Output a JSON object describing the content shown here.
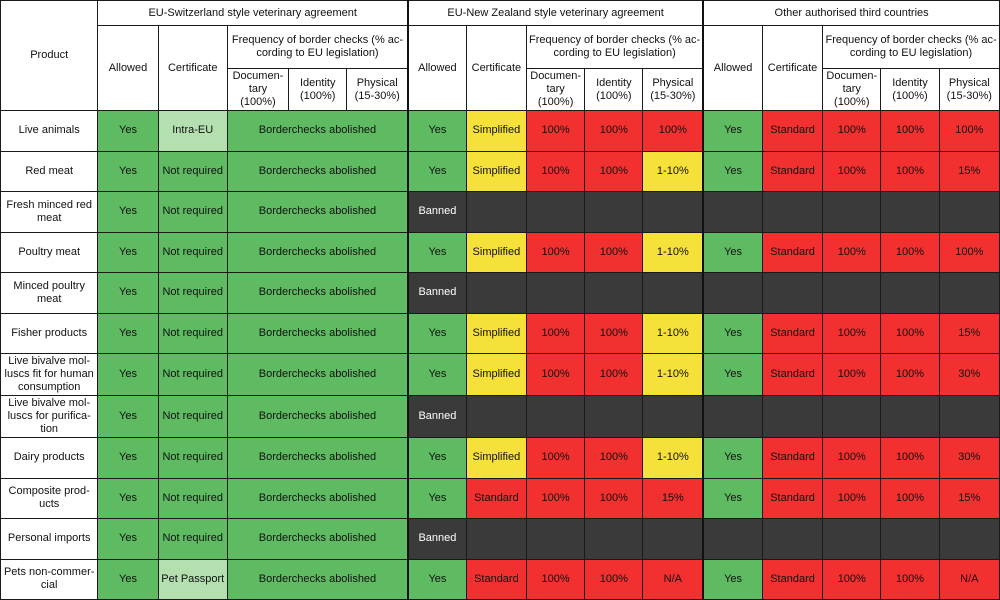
{
  "header": {
    "product": "Product",
    "groups": [
      "EU-Switzerland style veterinary agreement",
      "EU-New Zealand style veterinary agreement",
      "Other authorised third countries"
    ],
    "allowed": "Allowed",
    "certificate": "Certificate",
    "frequency": "Frequency of border checks (% ac-cording to EU legislation)",
    "documentary": "Documen-tary (100%)",
    "identity": "Identity (100%)",
    "physical": "Physical (15-30%)"
  },
  "colors": {
    "green": "#5fbb62",
    "light_green": "#b4e0b0",
    "yellow": "#f6e03a",
    "red": "#f23030",
    "dark": "#3a3a3a"
  },
  "rows": [
    {
      "product": "Live animals",
      "ch_allowed": "Yes",
      "ch_cert": "Intra-EU",
      "ch_checks": "Borderchecks abolished",
      "nz_allowed": "Yes",
      "nz_cert": "Simplified",
      "nz_doc": "100%",
      "nz_id": "100%",
      "nz_phys": "100%",
      "ot_allowed": "Yes",
      "ot_cert": "Standard",
      "ot_doc": "100%",
      "ot_id": "100%",
      "ot_phys": "100%"
    },
    {
      "product": "Red meat",
      "ch_allowed": "Yes",
      "ch_cert": "Not required",
      "ch_checks": "Borderchecks abolished",
      "nz_allowed": "Yes",
      "nz_cert": "Simplified",
      "nz_doc": "100%",
      "nz_id": "100%",
      "nz_phys": "1-10%",
      "ot_allowed": "Yes",
      "ot_cert": "Standard",
      "ot_doc": "100%",
      "ot_id": "100%",
      "ot_phys": "15%"
    },
    {
      "product": "Fresh minced red meat",
      "ch_allowed": "Yes",
      "ch_cert": "Not required",
      "ch_checks": "Borderchecks abolished",
      "nz_allowed": "Banned"
    },
    {
      "product": "Poultry meat",
      "ch_allowed": "Yes",
      "ch_cert": "Not required",
      "ch_checks": "Borderchecks abolished",
      "nz_allowed": "Yes",
      "nz_cert": "Simplified",
      "nz_doc": "100%",
      "nz_id": "100%",
      "nz_phys": "1-10%",
      "ot_allowed": "Yes",
      "ot_cert": "Standard",
      "ot_doc": "100%",
      "ot_id": "100%",
      "ot_phys": "100%"
    },
    {
      "product": "Minced poultry meat",
      "ch_allowed": "Yes",
      "ch_cert": "Not required",
      "ch_checks": "Borderchecks abolished",
      "nz_allowed": "Banned"
    },
    {
      "product": "Fisher products",
      "ch_allowed": "Yes",
      "ch_cert": "Not required",
      "ch_checks": "Borderchecks abolished",
      "nz_allowed": "Yes",
      "nz_cert": "Simplified",
      "nz_doc": "100%",
      "nz_id": "100%",
      "nz_phys": "1-10%",
      "ot_allowed": "Yes",
      "ot_cert": "Standard",
      "ot_doc": "100%",
      "ot_id": "100%",
      "ot_phys": "15%"
    },
    {
      "product": "Live bivalve mol-luscs fit for human consumption",
      "ch_allowed": "Yes",
      "ch_cert": "Not required",
      "ch_checks": "Borderchecks abolished",
      "nz_allowed": "Yes",
      "nz_cert": "Simplified",
      "nz_doc": "100%",
      "nz_id": "100%",
      "nz_phys": "1-10%",
      "ot_allowed": "Yes",
      "ot_cert": "Standard",
      "ot_doc": "100%",
      "ot_id": "100%",
      "ot_phys": "30%"
    },
    {
      "product": "Live bivalve mol-luscs for purifica-tion",
      "ch_allowed": "Yes",
      "ch_cert": "Not required",
      "ch_checks": "Borderchecks abolished",
      "nz_allowed": "Banned"
    },
    {
      "product": "Dairy products",
      "ch_allowed": "Yes",
      "ch_cert": "Not required",
      "ch_checks": "Borderchecks abolished",
      "nz_allowed": "Yes",
      "nz_cert": "Simplified",
      "nz_doc": "100%",
      "nz_id": "100%",
      "nz_phys": "1-10%",
      "ot_allowed": "Yes",
      "ot_cert": "Standard",
      "ot_doc": "100%",
      "ot_id": "100%",
      "ot_phys": "30%"
    },
    {
      "product": "Composite prod-ucts",
      "ch_allowed": "Yes",
      "ch_cert": "Not required",
      "ch_checks": "Borderchecks abolished",
      "nz_allowed": "Yes",
      "nz_cert": "Standard",
      "nz_doc": "100%",
      "nz_id": "100%",
      "nz_phys": "15%",
      "ot_allowed": "Yes",
      "ot_cert": "Standard",
      "ot_doc": "100%",
      "ot_id": "100%",
      "ot_phys": "15%"
    },
    {
      "product": "Personal imports",
      "ch_allowed": "Yes",
      "ch_cert": "Not required",
      "ch_checks": "Borderchecks abolished",
      "nz_allowed": "Banned"
    },
    {
      "product": "Pets non-commer-cial",
      "ch_allowed": "Yes",
      "ch_cert": "Pet Passport",
      "ch_checks": "Borderchecks abolished",
      "nz_allowed": "Yes",
      "nz_cert": "Standard",
      "nz_doc": "100%",
      "nz_id": "100%",
      "nz_phys": "N/A",
      "ot_allowed": "Yes",
      "ot_cert": "Standard",
      "ot_doc": "100%",
      "ot_id": "100%",
      "ot_phys": "N/A"
    }
  ]
}
